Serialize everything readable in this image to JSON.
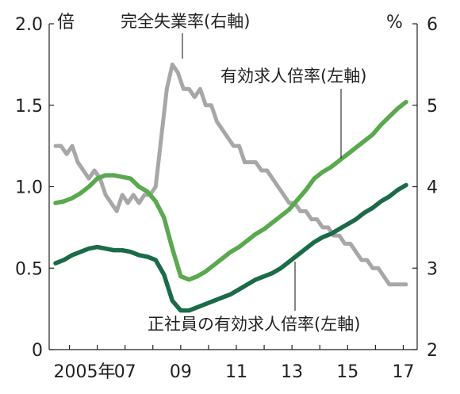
{
  "chart_data": {
    "type": "line",
    "units": {
      "left": "倍",
      "right": "%"
    },
    "y_left": {
      "ticks": [
        "2.0",
        "1.5",
        "1.0",
        "0.5",
        "0"
      ],
      "ylim": [
        0,
        2.0
      ]
    },
    "y_right": {
      "ticks": [
        "6",
        "5",
        "4",
        "3",
        "2"
      ],
      "ylim": [
        2,
        6
      ]
    },
    "x_ticks": [
      "2005年",
      "07",
      "09",
      "11",
      "13",
      "15",
      "17"
    ],
    "x_range": [
      2005.0,
      2018.0
    ],
    "annotations": {
      "unemployment": "完全失業率(右軸)",
      "job_ratio": "有効求人倍率(左軸)",
      "regular_ratio": "正社員の有効求人倍率(左軸)"
    },
    "series": [
      {
        "key": "unemployment",
        "axis": "right",
        "color": "#a7a7a7",
        "x": [
          2005.0,
          2005.2,
          2005.4,
          2005.6,
          2005.8,
          2006.0,
          2006.2,
          2006.4,
          2006.6,
          2006.8,
          2007.0,
          2007.2,
          2007.4,
          2007.6,
          2007.8,
          2008.0,
          2008.2,
          2008.4,
          2008.6,
          2008.8,
          2009.0,
          2009.2,
          2009.4,
          2009.6,
          2009.8,
          2010.0,
          2010.2,
          2010.4,
          2010.6,
          2010.8,
          2011.0,
          2011.2,
          2011.4,
          2011.6,
          2011.8,
          2012.0,
          2012.2,
          2012.4,
          2012.6,
          2012.8,
          2013.0,
          2013.2,
          2013.4,
          2013.6,
          2013.8,
          2014.0,
          2014.2,
          2014.4,
          2014.6,
          2014.8,
          2015.0,
          2015.2,
          2015.4,
          2015.6,
          2015.8,
          2016.0,
          2016.2,
          2016.4,
          2016.6,
          2016.8,
          2017.0,
          2017.2,
          2017.4,
          2017.6
        ],
        "values": [
          4.5,
          4.5,
          4.4,
          4.5,
          4.3,
          4.2,
          4.1,
          4.2,
          4.1,
          3.9,
          3.8,
          3.7,
          3.9,
          3.8,
          3.9,
          3.8,
          3.9,
          3.9,
          4.0,
          4.6,
          5.2,
          5.5,
          5.4,
          5.2,
          5.2,
          5.1,
          5.2,
          5.0,
          5.0,
          4.8,
          4.7,
          4.6,
          4.5,
          4.5,
          4.3,
          4.3,
          4.3,
          4.2,
          4.2,
          4.1,
          4.0,
          3.9,
          3.8,
          3.8,
          3.7,
          3.7,
          3.6,
          3.6,
          3.5,
          3.5,
          3.4,
          3.4,
          3.3,
          3.3,
          3.2,
          3.1,
          3.1,
          3.0,
          3.0,
          2.9,
          2.8,
          2.8,
          2.8,
          2.8
        ]
      },
      {
        "key": "job_ratio",
        "axis": "left",
        "color": "#5aa94f",
        "x": [
          2005.0,
          2005.3,
          2005.6,
          2005.9,
          2006.2,
          2006.5,
          2006.8,
          2007.1,
          2007.4,
          2007.7,
          2008.0,
          2008.3,
          2008.6,
          2008.9,
          2009.2,
          2009.5,
          2009.8,
          2010.1,
          2010.4,
          2010.7,
          2011.0,
          2011.3,
          2011.6,
          2011.9,
          2012.2,
          2012.5,
          2012.8,
          2013.1,
          2013.4,
          2013.7,
          2014.0,
          2014.3,
          2014.6,
          2014.9,
          2015.2,
          2015.5,
          2015.8,
          2016.1,
          2016.4,
          2016.7,
          2017.0,
          2017.3,
          2017.6
        ],
        "values": [
          0.9,
          0.91,
          0.93,
          0.96,
          1.0,
          1.05,
          1.07,
          1.07,
          1.06,
          1.05,
          1.0,
          0.97,
          0.91,
          0.81,
          0.62,
          0.45,
          0.43,
          0.45,
          0.48,
          0.52,
          0.56,
          0.6,
          0.63,
          0.67,
          0.71,
          0.74,
          0.78,
          0.82,
          0.86,
          0.92,
          0.98,
          1.05,
          1.09,
          1.12,
          1.16,
          1.2,
          1.24,
          1.28,
          1.32,
          1.38,
          1.43,
          1.48,
          1.52
        ]
      },
      {
        "key": "regular_ratio",
        "axis": "left",
        "color": "#1b6b48",
        "x": [
          2005.0,
          2005.3,
          2005.6,
          2005.9,
          2006.2,
          2006.5,
          2006.8,
          2007.1,
          2007.4,
          2007.7,
          2008.0,
          2008.3,
          2008.6,
          2008.9,
          2009.2,
          2009.5,
          2009.8,
          2010.1,
          2010.4,
          2010.7,
          2011.0,
          2011.3,
          2011.6,
          2011.9,
          2012.2,
          2012.5,
          2012.8,
          2013.1,
          2013.4,
          2013.7,
          2014.0,
          2014.3,
          2014.6,
          2014.9,
          2015.2,
          2015.5,
          2015.8,
          2016.1,
          2016.4,
          2016.7,
          2017.0,
          2017.3,
          2017.6
        ],
        "values": [
          0.53,
          0.55,
          0.58,
          0.6,
          0.62,
          0.63,
          0.62,
          0.61,
          0.61,
          0.6,
          0.58,
          0.57,
          0.55,
          0.46,
          0.3,
          0.24,
          0.24,
          0.26,
          0.28,
          0.3,
          0.32,
          0.34,
          0.37,
          0.4,
          0.43,
          0.45,
          0.47,
          0.5,
          0.54,
          0.58,
          0.62,
          0.66,
          0.69,
          0.71,
          0.74,
          0.77,
          0.8,
          0.84,
          0.87,
          0.91,
          0.94,
          0.98,
          1.01
        ]
      }
    ]
  }
}
